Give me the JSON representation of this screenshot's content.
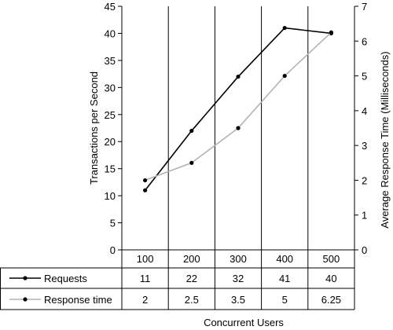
{
  "chart_data": {
    "type": "line",
    "categories": [
      "100",
      "200",
      "300",
      "400",
      "500"
    ],
    "xlabel": "Concurrent Users",
    "ylabel_left": "Transactions per Second",
    "ylabel_right": "Average Response Time (Milliseconds)",
    "ylim_left": [
      0,
      45
    ],
    "ylim_right": [
      0,
      7
    ],
    "yticks_left": [
      "0",
      "5",
      "10",
      "15",
      "20",
      "25",
      "30",
      "35",
      "40",
      "45"
    ],
    "yticks_right": [
      "0",
      "1",
      "2",
      "3",
      "4",
      "5",
      "6",
      "7"
    ],
    "grid": "vertical",
    "series": [
      {
        "name": "Requests",
        "axis": "left",
        "color": "#000000",
        "values": [
          11,
          22,
          32,
          41,
          40
        ],
        "table_values": [
          "11",
          "22",
          "32",
          "41",
          "40"
        ]
      },
      {
        "name": "Response time",
        "axis": "right",
        "color": "#b3b3b3",
        "values": [
          2,
          2.5,
          3.5,
          5,
          6.25
        ],
        "table_values": [
          "2",
          "2.5",
          "3.5",
          "5",
          "6.25"
        ]
      }
    ]
  }
}
